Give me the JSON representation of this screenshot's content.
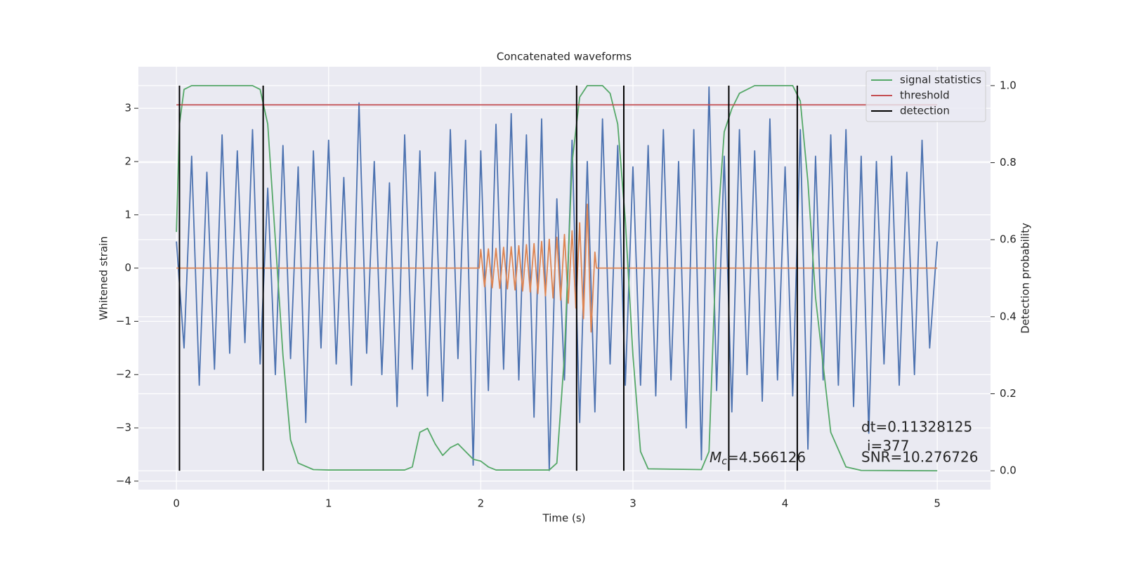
{
  "chart_data": {
    "type": "line",
    "title": "Concatenated waveforms",
    "xlabel": "Time (s)",
    "ylabel": "Whitened strain",
    "y2label": "Detection probability",
    "xlim": [
      -0.25,
      5.35
    ],
    "xticks": [
      0,
      1,
      2,
      3,
      4,
      5
    ],
    "ylim": [
      -4.16,
      3.78
    ],
    "yticks": [
      {
        "value": -4,
        "label": "−4"
      },
      {
        "value": -3,
        "label": "−3"
      },
      {
        "value": -2,
        "label": "−2"
      },
      {
        "value": -1,
        "label": "−1"
      },
      0,
      1,
      2,
      3
    ],
    "y2lim": [
      -0.049,
      1.049
    ],
    "y2ticks": [
      {
        "value": 0,
        "label": "0.0"
      },
      0.2,
      0.4,
      0.6,
      0.8,
      {
        "value": 1,
        "label": "1.0"
      }
    ],
    "grid": true,
    "background": "#eaeaf2",
    "legend": "upper right",
    "series": [
      {
        "color": "#4c72b0",
        "x": [
          0,
          0.05,
          0.1,
          0.15,
          0.2,
          0.25,
          0.3,
          0.35,
          0.4,
          0.45,
          0.5,
          0.55,
          0.6,
          0.65,
          0.7,
          0.75,
          0.8,
          0.85,
          0.9,
          0.95,
          1,
          1.05,
          1.1,
          1.15,
          1.2,
          1.25,
          1.3,
          1.35,
          1.4,
          1.45,
          1.5,
          1.55,
          1.6,
          1.65,
          1.7,
          1.75,
          1.8,
          1.85,
          1.9,
          1.95,
          2,
          2.05,
          2.1,
          2.15,
          2.2,
          2.25,
          2.3,
          2.35,
          2.4,
          2.45,
          2.5,
          2.55,
          2.6,
          2.65,
          2.7,
          2.75,
          2.8,
          2.85,
          2.9,
          2.95,
          3,
          3.05,
          3.1,
          3.15,
          3.2,
          3.25,
          3.3,
          3.35,
          3.4,
          3.45,
          3.5,
          3.55,
          3.6,
          3.65,
          3.7,
          3.75,
          3.8,
          3.85,
          3.9,
          3.95,
          4,
          4.05,
          4.1,
          4.15,
          4.2,
          4.25,
          4.3,
          4.35,
          4.4,
          4.45,
          4.5,
          4.55,
          4.6,
          4.65,
          4.7,
          4.75,
          4.8,
          4.85,
          4.9,
          4.95,
          5
        ],
        "values": [
          0.5,
          -1.5,
          2.1,
          -2.2,
          1.8,
          -1.9,
          2.5,
          -1.6,
          2.2,
          -1.4,
          2.6,
          -1.8,
          1.5,
          -2.0,
          2.3,
          -1.7,
          1.9,
          -2.9,
          2.2,
          -1.5,
          2.4,
          -1.8,
          1.7,
          -2.2,
          3.1,
          -1.6,
          2.0,
          -2.0,
          1.6,
          -2.6,
          2.5,
          -1.9,
          2.2,
          -2.4,
          1.8,
          -2.5,
          2.6,
          -1.7,
          2.4,
          -3.7,
          2.2,
          -2.3,
          2.7,
          -1.9,
          2.9,
          -2.1,
          2.5,
          -2.8,
          2.8,
          -3.8,
          1.3,
          -2.1,
          2.4,
          -2.9,
          2.0,
          -2.7,
          2.8,
          -1.8,
          2.3,
          -2.2,
          1.9,
          -2.2,
          2.3,
          -2.4,
          2.6,
          -2.1,
          2.0,
          -3.0,
          2.6,
          -3.6,
          3.4,
          -2.3,
          2.1,
          -2.7,
          2.6,
          -2.0,
          2.2,
          -2.5,
          2.8,
          -2.1,
          1.9,
          -2.4,
          2.6,
          -3.4,
          2.1,
          -2.1,
          2.5,
          -2.2,
          2.6,
          -2.6,
          2.1,
          -3.1,
          2.0,
          -1.8,
          2.1,
          -2.2,
          1.8,
          -2.0,
          2.4,
          -1.5,
          0.5
        ]
      },
      {
        "color": "#dd8452",
        "x": [
          0,
          1.99,
          2,
          2.025,
          2.05,
          2.075,
          2.1,
          2.125,
          2.15,
          2.175,
          2.2,
          2.225,
          2.25,
          2.275,
          2.3,
          2.325,
          2.35,
          2.375,
          2.4,
          2.425,
          2.45,
          2.475,
          2.5,
          2.525,
          2.55,
          2.575,
          2.6,
          2.625,
          2.65,
          2.675,
          2.7,
          2.725,
          2.75,
          2.76,
          5
        ],
        "values": [
          0,
          0,
          0.35,
          -0.35,
          0.36,
          -0.37,
          0.37,
          -0.38,
          0.39,
          -0.39,
          0.4,
          -0.41,
          0.42,
          -0.43,
          0.44,
          -0.45,
          0.46,
          -0.48,
          0.5,
          -0.52,
          0.54,
          -0.56,
          0.58,
          -0.6,
          0.63,
          -0.66,
          0.7,
          -0.75,
          0.85,
          -0.95,
          1.2,
          -1.2,
          0.3,
          0,
          0
        ]
      },
      {
        "name": "signal statistics",
        "color": "#55a868",
        "axis": "y2",
        "x": [
          0,
          0.02,
          0.05,
          0.1,
          0.5,
          0.55,
          0.6,
          0.65,
          0.7,
          0.75,
          0.8,
          0.9,
          1.0,
          1.5,
          1.55,
          1.6,
          1.65,
          1.7,
          1.75,
          1.8,
          1.85,
          1.9,
          1.95,
          2.0,
          2.05,
          2.1,
          2.45,
          2.5,
          2.55,
          2.6,
          2.65,
          2.7,
          2.8,
          2.85,
          2.9,
          2.95,
          3.0,
          3.05,
          3.1,
          3.45,
          3.5,
          3.55,
          3.6,
          3.65,
          3.7,
          3.8,
          4.05,
          4.1,
          4.15,
          4.2,
          4.3,
          4.4,
          4.5,
          5.0
        ],
        "values": [
          0.62,
          0.9,
          0.99,
          1.0,
          1.0,
          0.99,
          0.9,
          0.6,
          0.3,
          0.08,
          0.02,
          0.003,
          0.002,
          0.002,
          0.01,
          0.1,
          0.11,
          0.07,
          0.04,
          0.06,
          0.07,
          0.05,
          0.03,
          0.025,
          0.01,
          0.002,
          0.002,
          0.02,
          0.3,
          0.8,
          0.97,
          1.0,
          1.0,
          0.98,
          0.9,
          0.65,
          0.3,
          0.05,
          0.005,
          0.003,
          0.05,
          0.6,
          0.88,
          0.94,
          0.98,
          1.0,
          1.0,
          0.96,
          0.75,
          0.45,
          0.1,
          0.01,
          0.001,
          0.0
        ]
      },
      {
        "name": "threshold",
        "color": "#c44e52",
        "axis": "y2",
        "x": [
          0,
          5
        ],
        "values": [
          0.95,
          0.95
        ]
      }
    ],
    "detections": {
      "name": "detection",
      "color": "#000000",
      "x": [
        0.02,
        0.57,
        2.63,
        2.94,
        3.63,
        4.08
      ],
      "ymin": 0,
      "ymax": 1
    },
    "annotations": {
      "dt": "dt=0.11328125",
      "i": "i=377",
      "snr": "SNR=10.276726",
      "mc": {
        "symbol": "M",
        "subscript": "c",
        "text": "=4.566126"
      }
    }
  }
}
